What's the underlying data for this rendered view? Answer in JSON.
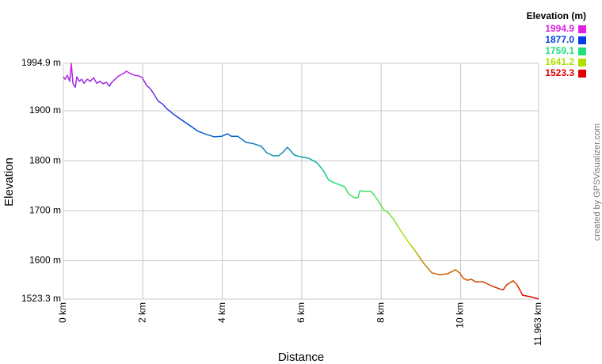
{
  "chart_data": {
    "type": "line",
    "x_label": "Distance",
    "y_label": "Elevation",
    "credit": "created by GPSVisualizer.com",
    "legend": {
      "title": "Elevation (m)",
      "items": [
        {
          "value": 1994.9,
          "label": "1994.9",
          "color": "#e020e0"
        },
        {
          "value": 1877.0,
          "label": "1877.0",
          "color": "#0040e0"
        },
        {
          "value": 1759.1,
          "label": "1759.1",
          "color": "#20e080"
        },
        {
          "value": 1641.2,
          "label": "1641.2",
          "color": "#b0e000"
        },
        {
          "value": 1523.3,
          "label": "1523.3",
          "color": "#e00000"
        }
      ]
    },
    "x": [
      0,
      0.04,
      0.1,
      0.16,
      0.2,
      0.24,
      0.3,
      0.34,
      0.4,
      0.46,
      0.52,
      0.6,
      0.68,
      0.76,
      0.84,
      0.92,
      1.0,
      1.08,
      1.16,
      1.2,
      1.3,
      1.4,
      1.5,
      1.59,
      1.69,
      1.79,
      1.89,
      1.99,
      2.09,
      2.19,
      2.29,
      2.39,
      2.49,
      2.59,
      2.79,
      2.99,
      3.19,
      3.39,
      3.59,
      3.79,
      3.99,
      4.13,
      4.23,
      4.39,
      4.59,
      4.79,
      4.98,
      5.12,
      5.28,
      5.42,
      5.54,
      5.64,
      5.74,
      5.82,
      5.98,
      6.18,
      6.38,
      6.54,
      6.68,
      6.88,
      7.08,
      7.18,
      7.32,
      7.42,
      7.46,
      7.58,
      7.74,
      7.82,
      7.94,
      8.07,
      8.17,
      8.31,
      8.47,
      8.67,
      8.87,
      9.07,
      9.27,
      9.47,
      9.67,
      9.87,
      9.97,
      10.07,
      10.17,
      10.27,
      10.37,
      10.57,
      10.77,
      10.97,
      11.07,
      11.16,
      11.32,
      11.42,
      11.56,
      11.76,
      11.86,
      11.963
    ],
    "series": [
      {
        "name": "Elevation",
        "values": [
          1968,
          1963,
          1971,
          1959,
          1994.9,
          1955,
          1947,
          1968,
          1959,
          1963,
          1955,
          1963,
          1959,
          1966,
          1955,
          1959,
          1954,
          1957,
          1949,
          1955,
          1963,
          1970,
          1974,
          1979,
          1974,
          1971,
          1970,
          1966,
          1951,
          1944,
          1932,
          1919,
          1914,
          1905,
          1892,
          1881,
          1870,
          1859,
          1853,
          1848,
          1849,
          1854,
          1849,
          1849,
          1837,
          1834,
          1829,
          1816,
          1810,
          1810,
          1818,
          1827,
          1818,
          1811,
          1808,
          1805,
          1796,
          1781,
          1761,
          1754,
          1748,
          1734,
          1726,
          1726,
          1740,
          1739,
          1739,
          1732,
          1718,
          1701,
          1697,
          1683,
          1663,
          1639,
          1618,
          1595,
          1576,
          1572,
          1574,
          1582,
          1576,
          1565,
          1561,
          1563,
          1558,
          1558,
          1550,
          1544,
          1542,
          1552,
          1560,
          1552,
          1531,
          1528,
          1526,
          1523.3
        ]
      }
    ],
    "xlim": [
      0,
      11.963
    ],
    "xticks": [
      {
        "value": 0,
        "label": "0 km"
      },
      {
        "value": 2,
        "label": "2 km"
      },
      {
        "value": 4,
        "label": "4 km"
      },
      {
        "value": 6,
        "label": "6 km"
      },
      {
        "value": 8,
        "label": "8 km"
      },
      {
        "value": 10,
        "label": "10 km"
      },
      {
        "value": 11.963,
        "label": "11.963 km"
      }
    ],
    "ylim": [
      1523.3,
      1994.9
    ],
    "yticks": [
      {
        "value": 1523.3,
        "label": "1523.3 m"
      },
      {
        "value": 1600,
        "label": "1600 m"
      },
      {
        "value": 1700,
        "label": "1700 m"
      },
      {
        "value": 1800,
        "label": "1800 m"
      },
      {
        "value": 1900,
        "label": "1900 m"
      },
      {
        "value": 1994.9,
        "label": "1994.9 m"
      }
    ],
    "grid": true
  }
}
